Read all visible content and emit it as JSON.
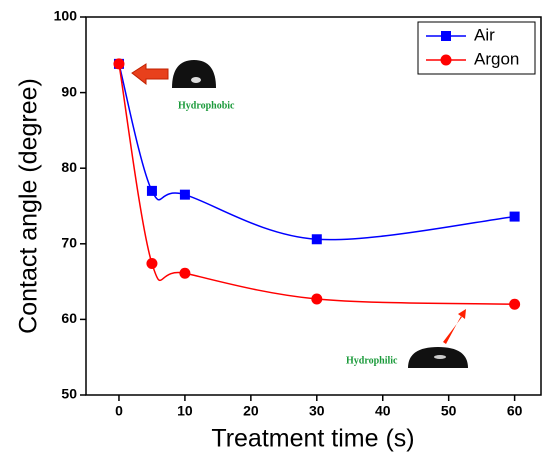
{
  "chart_data": {
    "type": "scatter",
    "x_label": "Treatment time (s)",
    "y_label": "Contact angle (degree)",
    "x": [
      0,
      5,
      10,
      30,
      60
    ],
    "series": [
      {
        "name": "Air",
        "color": "#0000ff",
        "marker": "square",
        "values": [
          93.8,
          77,
          76.5,
          70.6,
          73.6
        ]
      },
      {
        "name": "Argon",
        "color": "#ff0000",
        "marker": "circle",
        "values": [
          93.8,
          67.4,
          66.1,
          62.7,
          62.0
        ]
      }
    ],
    "xlim": [
      -5,
      64
    ],
    "xticks": [
      0,
      10,
      20,
      30,
      40,
      50,
      60
    ],
    "ylim": [
      50,
      100
    ],
    "yticks": [
      50,
      60,
      70,
      80,
      90,
      100
    ],
    "legend": "top-right",
    "annotations": [
      "Hydrophobic",
      "Hydrophilic"
    ]
  }
}
